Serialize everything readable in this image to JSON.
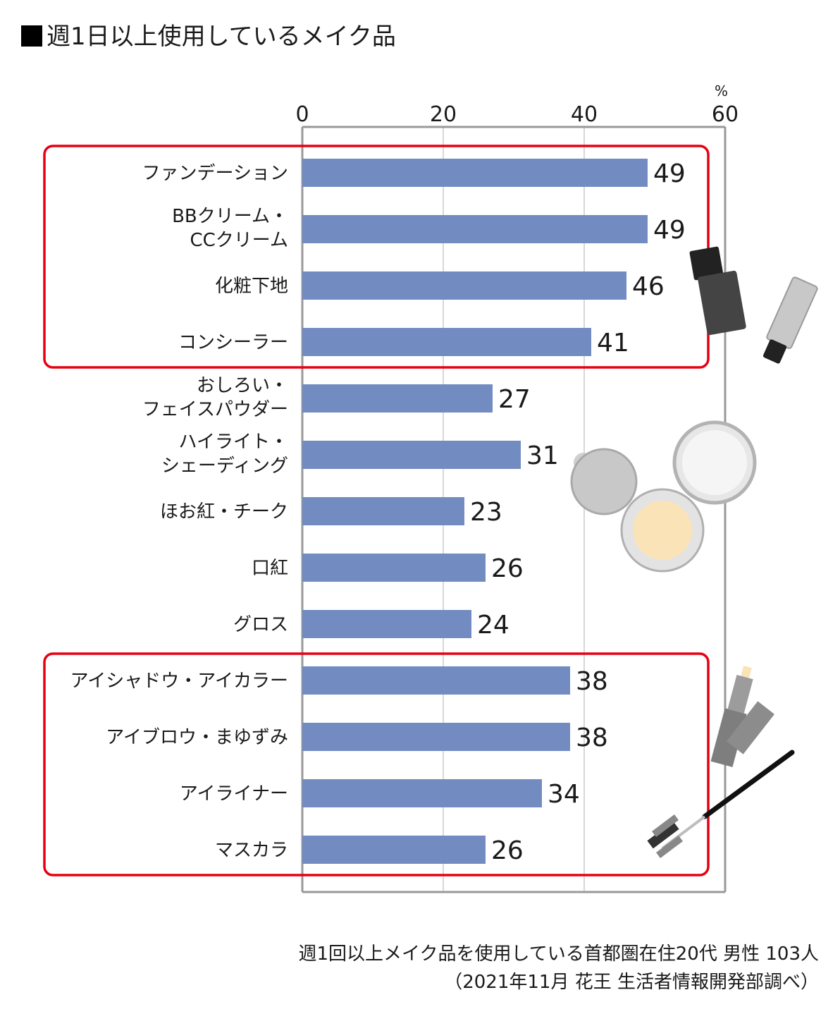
{
  "title": "週1日以上使用しているメイク品",
  "footnote_1": "週1回以上メイク品を使用している首都圏在住20代 男性 103人",
  "footnote_2": "（2021年11月 花王 生活者情報開発部調べ）",
  "colors": {
    "bar": "#728bc1",
    "highlight_box": "#e60012",
    "axis": "#999999",
    "grid": "#cccccc"
  },
  "chart_data": {
    "type": "bar",
    "orientation": "horizontal",
    "title": "週1日以上使用しているメイク品",
    "unit": "%",
    "xlim": [
      0,
      60
    ],
    "xticks": [
      0,
      20,
      40,
      60
    ],
    "grid": true,
    "categories": [
      [
        "ファンデーション"
      ],
      [
        "BBクリーム・",
        "CCクリーム"
      ],
      [
        "化粧下地"
      ],
      [
        "コンシーラー"
      ],
      [
        "おしろい・",
        "フェイスパウダー"
      ],
      [
        "ハイライト・",
        "シェーディング"
      ],
      [
        "ほお紅・チーク"
      ],
      [
        "口紅"
      ],
      [
        "グロス"
      ],
      [
        "アイシャドウ・アイカラー"
      ],
      [
        "アイブロウ・まゆずみ"
      ],
      [
        "アイライナー"
      ],
      [
        "マスカラ"
      ]
    ],
    "values": [
      49,
      49,
      46,
      41,
      27,
      31,
      23,
      26,
      24,
      38,
      38,
      34,
      26
    ],
    "highlight_groups": [
      [
        0,
        3
      ],
      [
        9,
        12
      ]
    ]
  }
}
